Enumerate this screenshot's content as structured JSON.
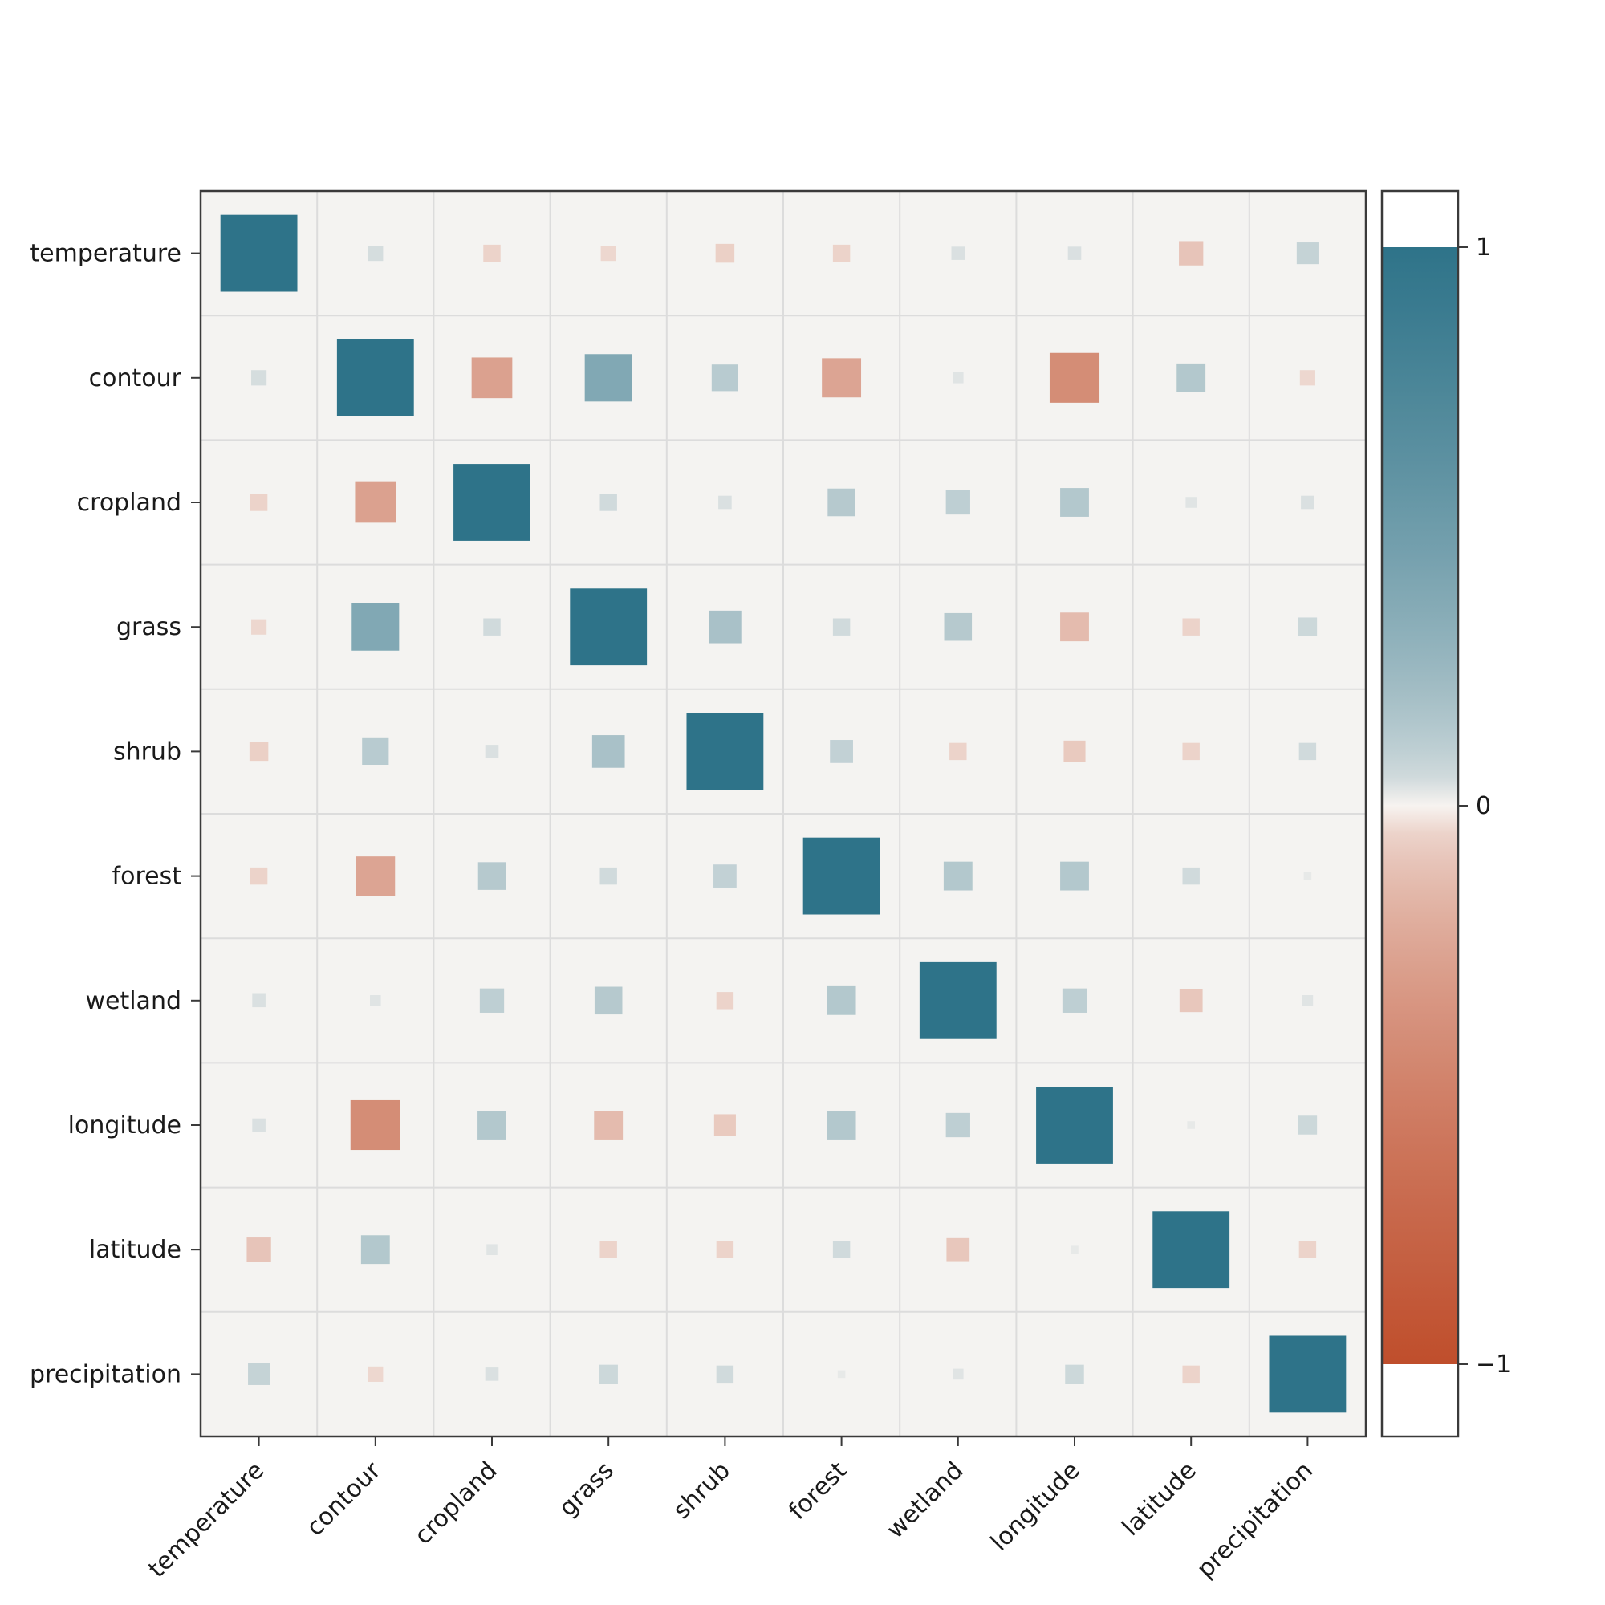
{
  "chart_data": {
    "type": "heatmap",
    "subtype": "correlation-matrix-sized-squares",
    "title": "",
    "labels": [
      "temperature",
      "contour",
      "cropland",
      "grass",
      "shrub",
      "forest",
      "wetland",
      "longitude",
      "latitude",
      "precipitation"
    ],
    "matrix": [
      [
        1.0,
        0.04,
        -0.05,
        -0.04,
        -0.06,
        -0.05,
        0.03,
        0.03,
        -0.1,
        0.08
      ],
      [
        0.04,
        1.0,
        -0.28,
        0.38,
        0.12,
        -0.26,
        0.02,
        -0.42,
        0.14,
        -0.04
      ],
      [
        -0.05,
        -0.28,
        1.0,
        0.05,
        0.03,
        0.13,
        0.1,
        0.14,
        0.02,
        0.03
      ],
      [
        -0.04,
        0.38,
        0.05,
        1.0,
        0.18,
        0.05,
        0.13,
        -0.14,
        -0.05,
        0.06
      ],
      [
        -0.06,
        0.12,
        0.03,
        0.18,
        1.0,
        0.09,
        -0.05,
        -0.08,
        -0.05,
        0.05
      ],
      [
        -0.05,
        -0.26,
        0.13,
        0.05,
        0.09,
        1.0,
        0.14,
        0.14,
        0.05,
        0.01
      ],
      [
        0.03,
        0.02,
        0.1,
        0.13,
        -0.05,
        0.14,
        1.0,
        0.1,
        -0.09,
        0.02
      ],
      [
        0.03,
        -0.42,
        0.14,
        -0.14,
        -0.08,
        0.14,
        0.1,
        1.0,
        0.01,
        0.06
      ],
      [
        -0.1,
        0.14,
        0.02,
        -0.05,
        -0.05,
        0.05,
        -0.09,
        0.01,
        1.0,
        -0.05
      ],
      [
        0.08,
        -0.04,
        0.03,
        0.06,
        0.05,
        0.01,
        0.02,
        0.06,
        -0.05,
        1.0
      ]
    ],
    "value_range": [
      -1,
      1
    ],
    "grid": true,
    "legend": false,
    "colorbar": {
      "position": "right",
      "tick_values": [
        1,
        0,
        -1
      ],
      "tick_labels": [
        "1",
        "0",
        "−1"
      ]
    },
    "colors": {
      "positive_max": "#2e7389",
      "negative_max": "#bf4e2c",
      "zero": "#f7f3f0",
      "plot_background": "#f4f3f1",
      "gridline": "#dcdcdc",
      "spine": "#3a3a3a",
      "text": "#1a1a1a"
    }
  }
}
